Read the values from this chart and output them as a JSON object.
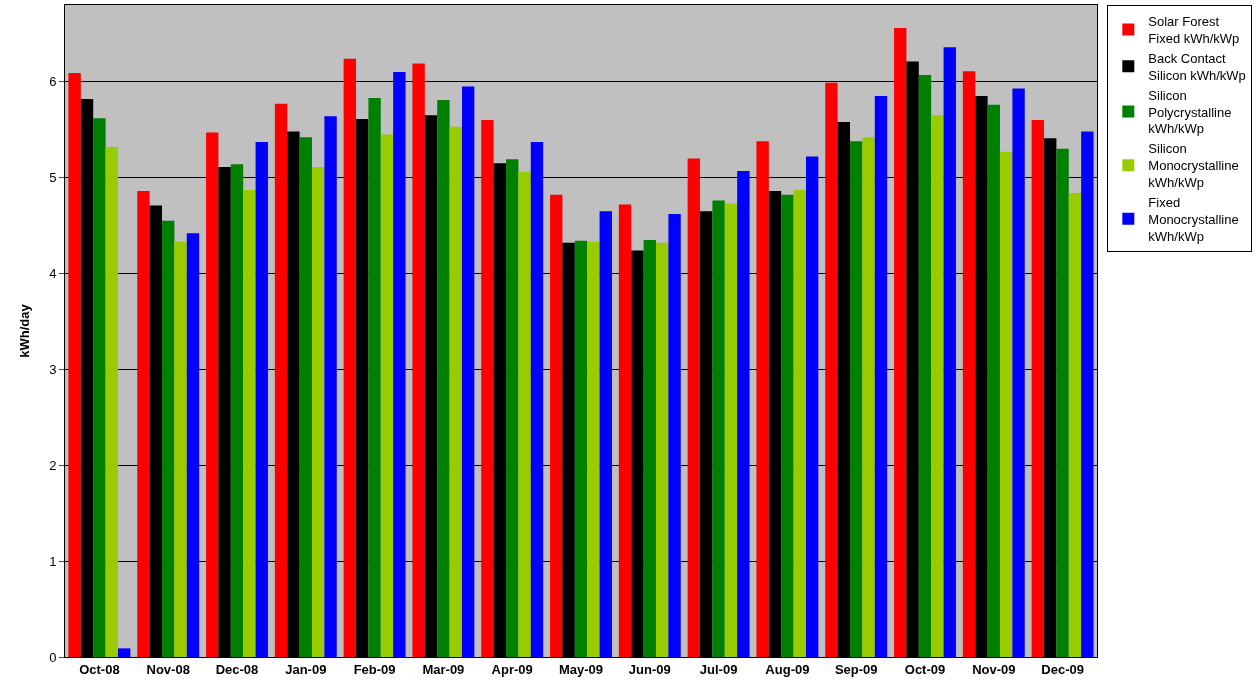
{
  "chart_data": {
    "type": "bar",
    "ylabel": "kWh/day",
    "categories": [
      "Oct-08",
      "Nov-08",
      "Dec-08",
      "Jan-09",
      "Feb-09",
      "Mar-09",
      "Apr-09",
      "May-09",
      "Jun-09",
      "Jul-09",
      "Aug-09",
      "Sep-09",
      "Oct-09",
      "Nov-09",
      "Dec-09"
    ],
    "series": [
      {
        "name": "Solar Forest Fixed kWh/kWp",
        "color": "#ff0000",
        "values": [
          6.09,
          4.86,
          5.47,
          5.77,
          6.24,
          6.19,
          5.6,
          4.82,
          4.72,
          5.2,
          5.38,
          5.99,
          6.56,
          6.11,
          5.6
        ]
      },
      {
        "name": "Back Contact Silicon kWh/kWp",
        "color": "#000000",
        "values": [
          5.82,
          4.71,
          5.11,
          5.48,
          5.61,
          5.65,
          5.15,
          4.32,
          4.24,
          4.65,
          4.86,
          5.58,
          6.21,
          5.85,
          5.41
        ]
      },
      {
        "name": "Silicon Polycrystalline kWh/kWp",
        "color": "#008000",
        "values": [
          5.62,
          4.55,
          5.14,
          5.42,
          5.83,
          5.81,
          5.19,
          4.34,
          4.35,
          4.76,
          4.82,
          5.38,
          6.07,
          5.76,
          5.3
        ]
      },
      {
        "name": "Silicon Monocrystalline kWh/kWp",
        "color": "#99cc00",
        "values": [
          5.32,
          4.33,
          4.87,
          5.11,
          5.45,
          5.53,
          5.06,
          4.33,
          4.32,
          4.73,
          4.87,
          5.42,
          5.65,
          5.27,
          4.84
        ]
      },
      {
        "name": "Fixed Monocrystalline kWh/kWp",
        "color": "#0000ff",
        "values": [
          0.09,
          4.42,
          5.37,
          5.64,
          6.1,
          5.95,
          5.37,
          4.65,
          4.62,
          5.07,
          5.22,
          5.85,
          6.36,
          5.93,
          5.48
        ]
      }
    ],
    "ylim": [
      0,
      6.8
    ],
    "yticks": [
      0,
      1,
      2,
      3,
      4,
      5,
      6
    ],
    "grid": "y",
    "legend": "top right"
  }
}
